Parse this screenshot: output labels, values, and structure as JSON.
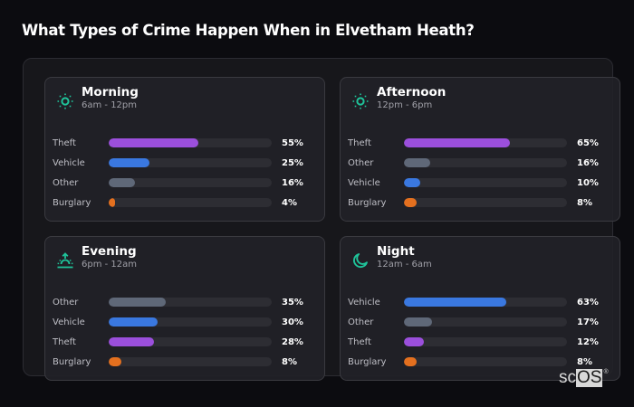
{
  "page": {
    "title": "What Types of Crime Happen When in Elvetham Heath?"
  },
  "colors": {
    "accent_icon": "#1fc49a",
    "Theft": "#9b4fdc",
    "Vehicle": "#3a78e0",
    "Other": "#5f6878",
    "Burglary": "#e4701f",
    "track": "#2d2d33"
  },
  "cards": [
    {
      "id": "morning",
      "title": "Morning",
      "range": "6am - 12pm",
      "icon": "sun-icon",
      "rows": [
        {
          "label": "Theft",
          "value": 55,
          "display": "55%"
        },
        {
          "label": "Vehicle",
          "value": 25,
          "display": "25%"
        },
        {
          "label": "Other",
          "value": 16,
          "display": "16%"
        },
        {
          "label": "Burglary",
          "value": 4,
          "display": "4%"
        }
      ]
    },
    {
      "id": "afternoon",
      "title": "Afternoon",
      "range": "12pm - 6pm",
      "icon": "sun-icon",
      "rows": [
        {
          "label": "Theft",
          "value": 65,
          "display": "65%"
        },
        {
          "label": "Other",
          "value": 16,
          "display": "16%"
        },
        {
          "label": "Vehicle",
          "value": 10,
          "display": "10%"
        },
        {
          "label": "Burglary",
          "value": 8,
          "display": "8%"
        }
      ]
    },
    {
      "id": "evening",
      "title": "Evening",
      "range": "6pm - 12am",
      "icon": "sunset-icon",
      "rows": [
        {
          "label": "Other",
          "value": 35,
          "display": "35%"
        },
        {
          "label": "Vehicle",
          "value": 30,
          "display": "30%"
        },
        {
          "label": "Theft",
          "value": 28,
          "display": "28%"
        },
        {
          "label": "Burglary",
          "value": 8,
          "display": "8%"
        }
      ]
    },
    {
      "id": "night",
      "title": "Night",
      "range": "12am - 6am",
      "icon": "moon-icon",
      "rows": [
        {
          "label": "Vehicle",
          "value": 63,
          "display": "63%"
        },
        {
          "label": "Other",
          "value": 17,
          "display": "17%"
        },
        {
          "label": "Theft",
          "value": 12,
          "display": "12%"
        },
        {
          "label": "Burglary",
          "value": 8,
          "display": "8%"
        }
      ]
    }
  ],
  "logo": {
    "prefix": "sc",
    "boxed": "OS",
    "mark": "®"
  },
  "chart_data": [
    {
      "type": "bar",
      "orientation": "horizontal",
      "title": "Morning",
      "subtitle": "6am - 12pm",
      "categories": [
        "Theft",
        "Vehicle",
        "Other",
        "Burglary"
      ],
      "values": [
        55,
        25,
        16,
        4
      ],
      "unit": "%",
      "xlim": [
        0,
        100
      ]
    },
    {
      "type": "bar",
      "orientation": "horizontal",
      "title": "Afternoon",
      "subtitle": "12pm - 6pm",
      "categories": [
        "Theft",
        "Other",
        "Vehicle",
        "Burglary"
      ],
      "values": [
        65,
        16,
        10,
        8
      ],
      "unit": "%",
      "xlim": [
        0,
        100
      ]
    },
    {
      "type": "bar",
      "orientation": "horizontal",
      "title": "Evening",
      "subtitle": "6pm - 12am",
      "categories": [
        "Other",
        "Vehicle",
        "Theft",
        "Burglary"
      ],
      "values": [
        35,
        30,
        28,
        8
      ],
      "unit": "%",
      "xlim": [
        0,
        100
      ]
    },
    {
      "type": "bar",
      "orientation": "horizontal",
      "title": "Night",
      "subtitle": "12am - 6am",
      "categories": [
        "Vehicle",
        "Other",
        "Theft",
        "Burglary"
      ],
      "values": [
        63,
        17,
        12,
        8
      ],
      "unit": "%",
      "xlim": [
        0,
        100
      ]
    }
  ]
}
